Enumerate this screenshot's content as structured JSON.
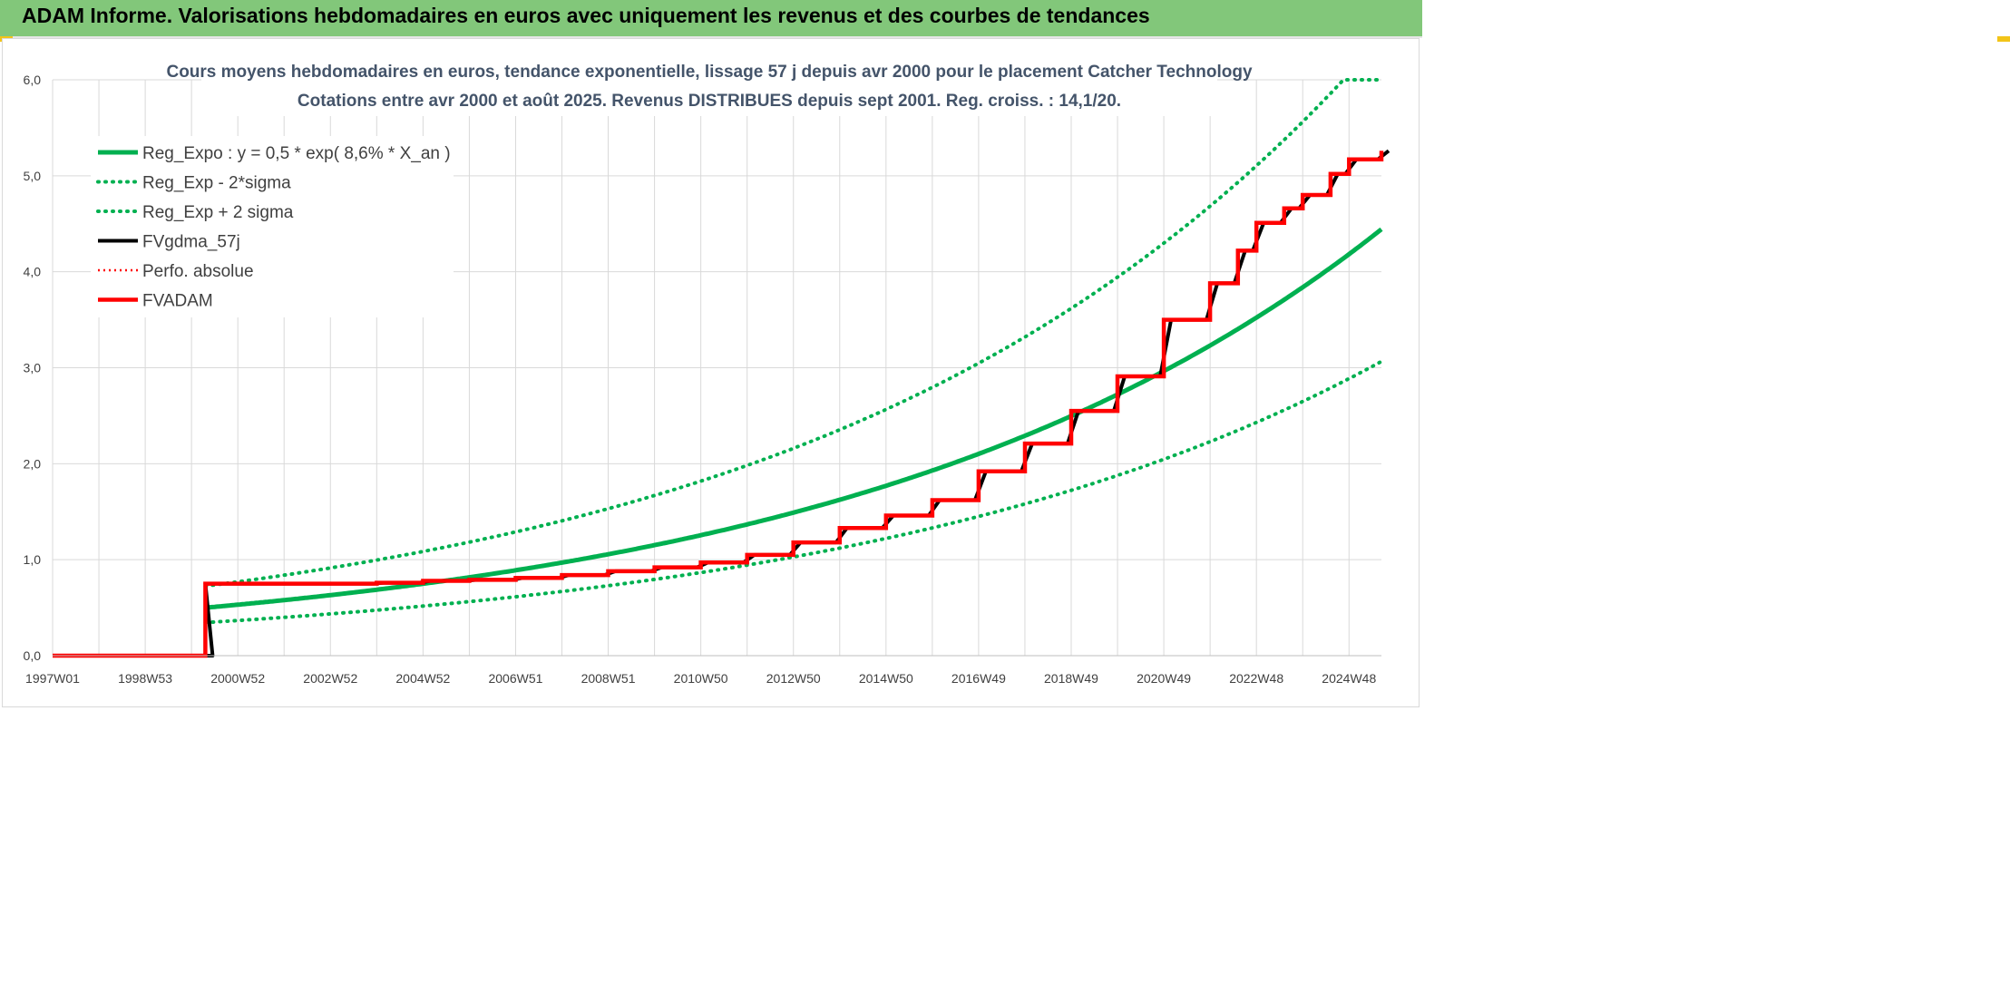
{
  "header": {
    "title": "ADAM Informe. Valorisations hebdomadaires en euros avec uniquement les revenus et des courbes de tendances"
  },
  "colors": {
    "header_bg": "#82c77a",
    "green": "#00b050",
    "red": "#ff0000",
    "black": "#000000",
    "accent": "#f2c418"
  },
  "chart_data": {
    "type": "line",
    "title": "Cours moyens hebdomadaires en euros, tendance exponentielle, lissage 57 j depuis avr 2000 pour le placement Catcher Technology",
    "subtitle": "Cotations entre avr 2000 et août 2025. Revenus DISTRIBUES depuis sept 2001. Reg. croiss. : 14,1/20.",
    "x_tick_labels": [
      "1997W01",
      "1998W53",
      "2000W52",
      "2002W52",
      "2004W52",
      "2006W51",
      "2008W51",
      "2010W50",
      "2012W50",
      "2014W50",
      "2016W49",
      "2018W49",
      "2020W49",
      "2022W48",
      "2024W48"
    ],
    "y_tick_labels": [
      "0,0",
      "1,0",
      "2,0",
      "3,0",
      "4,0",
      "5,0",
      "6,0"
    ],
    "xlim": [
      1997.0,
      2025.7
    ],
    "ylim": [
      0,
      6
    ],
    "grid": true,
    "legend_position": "top-left",
    "regression": {
      "a": 0.5,
      "rate": 0.086,
      "start": 2000.3,
      "sigma_factor": 0.69
    },
    "series": [
      {
        "name": "Reg_Expo : y = 0,5 * exp( 8,6% *  X_an )",
        "color": "#00b050",
        "style": "solid"
      },
      {
        "name": "Reg_Exp - 2*sigma",
        "color": "#00b050",
        "style": "dotted"
      },
      {
        "name": "Reg_Exp + 2 sigma",
        "color": "#00b050",
        "style": "dotted"
      },
      {
        "name": "FVgdma_57j",
        "color": "#000000",
        "style": "solid"
      },
      {
        "name": "Perfo. absolue",
        "color": "#ff0000",
        "style": "dotted"
      },
      {
        "name": "FVADAM",
        "color": "#ff0000",
        "style": "solid",
        "x": [
          1997.0,
          2000.3,
          2000.3,
          2001.0,
          2002.0,
          2003.0,
          2004.0,
          2005.0,
          2006.0,
          2007.0,
          2008.0,
          2009.0,
          2010.0,
          2011.0,
          2012.0,
          2013.0,
          2014.0,
          2015.0,
          2016.0,
          2017.0,
          2018.0,
          2019.0,
          2020.0,
          2021.0,
          2022.0,
          2022.6,
          2023.0,
          2023.6,
          2024.0,
          2024.6,
          2025.0,
          2025.7
        ],
        "values": [
          0,
          0,
          0.75,
          0.75,
          0.75,
          0.75,
          0.76,
          0.78,
          0.79,
          0.81,
          0.84,
          0.88,
          0.92,
          0.97,
          1.05,
          1.18,
          1.33,
          1.46,
          1.62,
          1.92,
          2.21,
          2.55,
          2.91,
          3.5,
          3.88,
          4.22,
          4.51,
          4.66,
          4.8,
          5.02,
          5.17,
          5.26
        ]
      }
    ]
  }
}
